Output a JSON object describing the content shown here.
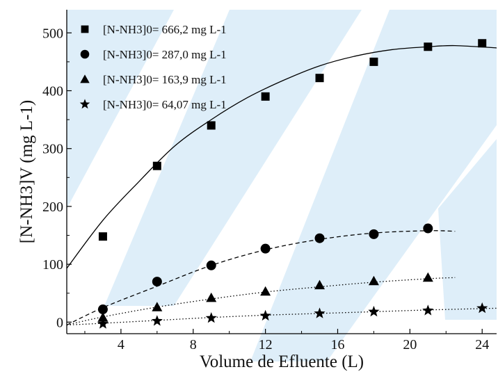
{
  "chart_data": {
    "type": "scatter",
    "title": "",
    "xlabel": "Volume de Efluente (L)",
    "ylabel": "[N-NH3]V (mg L-1)",
    "xlim": [
      1,
      24.8
    ],
    "ylim": [
      -20,
      540
    ],
    "xticks": [
      4,
      8,
      12,
      16,
      20,
      24
    ],
    "yticks": [
      0,
      100,
      200,
      300,
      400,
      500
    ],
    "legend_position": "top-left",
    "colors": {
      "background_band": "#4a9fe0",
      "marks": "#000000"
    },
    "series": [
      {
        "name": "[N-NH3]0= 666,2 mg L-1",
        "marker": "square",
        "curve": "solid",
        "x": [
          3,
          6,
          9,
          12,
          15,
          18,
          21,
          24
        ],
        "y": [
          148,
          270,
          340,
          390,
          422,
          450,
          476,
          482
        ],
        "fit": {
          "x": [
            1,
            3,
            5,
            7,
            9,
            11,
            13,
            15,
            17,
            19,
            21,
            22.5,
            24.8
          ],
          "y": [
            93,
            176,
            243,
            305,
            350,
            388,
            418,
            443,
            460,
            471,
            476,
            478,
            474
          ]
        }
      },
      {
        "name": "[N-NH3]0= 287,0 mg L-1",
        "marker": "circle",
        "curve": "dashed",
        "x": [
          3,
          6,
          9,
          12,
          15,
          18,
          21
        ],
        "y": [
          22,
          70,
          98,
          127,
          145,
          152,
          162
        ],
        "fit": {
          "x": [
            1,
            3,
            6,
            9,
            12,
            15,
            18,
            21,
            22.5
          ],
          "y": [
            -5,
            25,
            62,
            98,
            125,
            143,
            154,
            158,
            157
          ]
        }
      },
      {
        "name": "[N-NH3]0= 163,9 mg L-1",
        "marker": "triangle",
        "curve": "dotted",
        "x": [
          3,
          6,
          9,
          12,
          15,
          18,
          21
        ],
        "y": [
          8,
          26,
          42,
          53,
          64,
          71,
          77
        ],
        "fit": {
          "x": [
            1,
            3,
            6,
            9,
            12,
            15,
            18,
            21,
            22.5
          ],
          "y": [
            -5,
            9,
            26,
            40,
            52,
            61,
            69,
            75,
            77
          ]
        }
      },
      {
        "name": "[N-NH3]0= 64,07 mg L-1",
        "marker": "star",
        "curve": "dotted",
        "x": [
          3,
          6,
          9,
          12,
          15,
          18,
          21,
          24
        ],
        "y": [
          -3,
          2,
          7,
          11,
          15,
          18,
          20,
          24
        ],
        "fit": {
          "x": [
            1,
            3,
            6,
            9,
            12,
            15,
            18,
            21,
            24.8
          ],
          "y": [
            -5,
            -2,
            3,
            8,
            12,
            15,
            18,
            21,
            24
          ]
        }
      }
    ]
  }
}
